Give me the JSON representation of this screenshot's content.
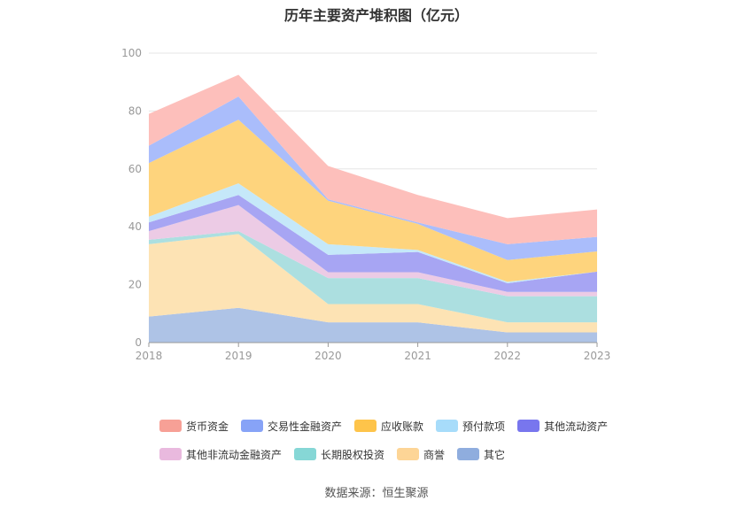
{
  "chart_data": {
    "type": "area",
    "stacked": true,
    "title": "历年主要资产堆积图（亿元）",
    "categories": [
      "2018",
      "2019",
      "2020",
      "2021",
      "2022",
      "2023"
    ],
    "ylim": [
      0,
      100
    ],
    "yticks": [
      0,
      20,
      40,
      60,
      80,
      100
    ],
    "grid": true,
    "legend_position": "bottom",
    "series": [
      {
        "name": "其它",
        "color": "#aec3e6",
        "values": [
          9,
          12,
          7,
          7,
          3.5,
          3.5
        ]
      },
      {
        "name": "商誉",
        "color": "#fde3b4",
        "values": [
          25,
          25.5,
          6.3,
          6.3,
          3.5,
          3.5
        ]
      },
      {
        "name": "长期股权投资",
        "color": "#acdfe0",
        "values": [
          1.5,
          1,
          9,
          9,
          9,
          9
        ]
      },
      {
        "name": "其他非流动金融资产",
        "color": "#eccbe5",
        "values": [
          3,
          9,
          2,
          2,
          1.5,
          1.5
        ]
      },
      {
        "name": "其他流动资产",
        "color": "#a7a5f3",
        "values": [
          3,
          3.5,
          6,
          7,
          3,
          7
        ]
      },
      {
        "name": "预付款项",
        "color": "#c5e8f9",
        "values": [
          2,
          4,
          3.7,
          0.7,
          0.5,
          0
        ]
      },
      {
        "name": "应收账款",
        "color": "#fed47d",
        "values": [
          18.5,
          22,
          15,
          9,
          7.5,
          7
        ]
      },
      {
        "name": "交易性金融资产",
        "color": "#aabdfb",
        "values": [
          6,
          8,
          0.5,
          0.5,
          5.5,
          5
        ]
      },
      {
        "name": "货币资金",
        "color": "#fdbfbb",
        "values": [
          11,
          7.5,
          11.5,
          9.5,
          9,
          9.5
        ]
      }
    ]
  },
  "legend": {
    "row1": [
      {
        "label": "货币资金",
        "color": "#f7a096"
      },
      {
        "label": "交易性金融资产",
        "color": "#87a3f7"
      },
      {
        "label": "应收账款",
        "color": "#fec44a"
      },
      {
        "label": "预付款项",
        "color": "#a7dcfa"
      },
      {
        "label": "其他流动资产",
        "color": "#7876ee"
      }
    ],
    "row2": [
      {
        "label": "其他非流动金融资产",
        "color": "#e9b9de"
      },
      {
        "label": "长期股权投资",
        "color": "#86d7d6"
      },
      {
        "label": "商誉",
        "color": "#fdd596"
      },
      {
        "label": "其它",
        "color": "#8fadde"
      }
    ]
  },
  "source": "数据来源：恒生聚源"
}
